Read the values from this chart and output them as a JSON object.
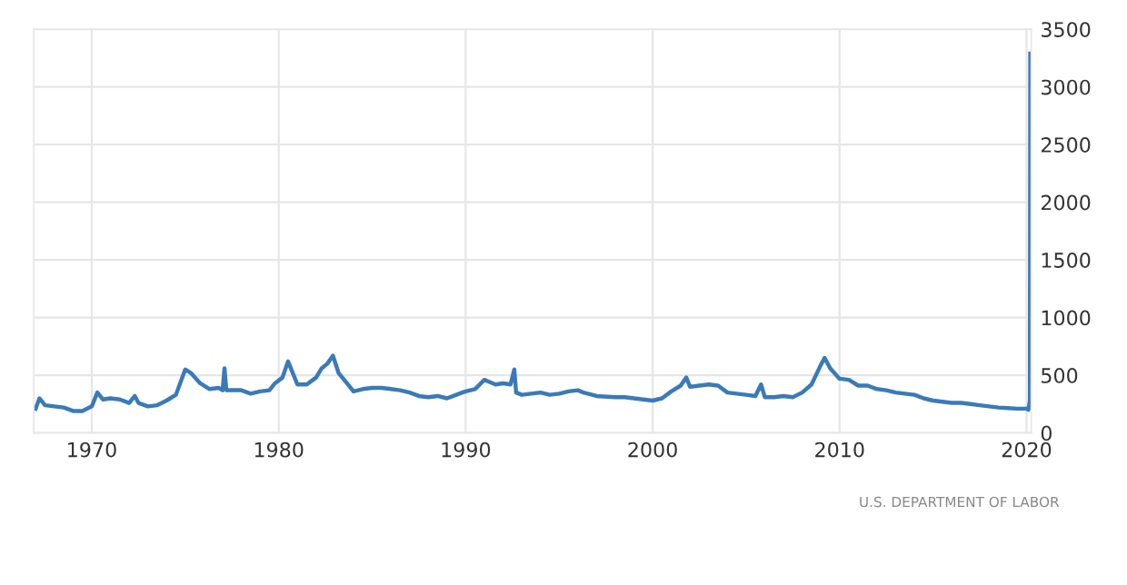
{
  "chart_data": {
    "type": "line",
    "x": [
      1967.0,
      1967.2,
      1967.5,
      1968,
      1968.5,
      1969,
      1969.5,
      1970,
      1970.3,
      1970.6,
      1971,
      1971.5,
      1972,
      1972.3,
      1972.5,
      1973,
      1973.5,
      1974,
      1974.5,
      1975.0,
      1975.3,
      1975.8,
      1976.3,
      1976.8,
      1977.0,
      1977.1,
      1977.2,
      1978,
      1978.5,
      1979,
      1979.5,
      1979.8,
      1980.2,
      1980.5,
      1980.8,
      1981,
      1981.5,
      1982,
      1982.3,
      1982.6,
      1982.9,
      1983.2,
      1983.6,
      1984,
      1984.5,
      1985,
      1985.5,
      1986,
      1986.5,
      1987,
      1987.5,
      1988,
      1988.5,
      1989,
      1989.5,
      1990,
      1990.5,
      1991.0,
      1991.3,
      1991.6,
      1992,
      1992.4,
      1992.6,
      1992.7,
      1993,
      1993.5,
      1994,
      1994.5,
      1995,
      1995.5,
      1996,
      1996.3,
      1997,
      1998,
      1998.5,
      1999,
      1999.5,
      2000,
      2000.5,
      2001,
      2001.5,
      2001.8,
      2002,
      2002.5,
      2003,
      2003.5,
      2004,
      2004.5,
      2005,
      2005.5,
      2005.8,
      2006,
      2006.5,
      2007,
      2007.5,
      2008,
      2008.5,
      2009.0,
      2009.2,
      2009.5,
      2010,
      2010.5,
      2011,
      2011.5,
      2012,
      2012.5,
      2013,
      2013.5,
      2014,
      2014.5,
      2015,
      2015.5,
      2016,
      2016.5,
      2017,
      2017.5,
      2018,
      2018.5,
      2019,
      2019.5,
      2020.0,
      2020.1,
      2020.18,
      2020.2
    ],
    "series": [
      {
        "color": "#3a7ab8",
        "values": [
          210,
          300,
          240,
          230,
          220,
          190,
          190,
          230,
          350,
          290,
          300,
          290,
          260,
          320,
          260,
          230,
          240,
          280,
          330,
          550,
          520,
          430,
          380,
          390,
          370,
          560,
          370,
          370,
          340,
          360,
          370,
          430,
          480,
          620,
          500,
          420,
          420,
          480,
          560,
          600,
          670,
          520,
          440,
          360,
          380,
          390,
          390,
          380,
          370,
          350,
          320,
          310,
          320,
          300,
          330,
          360,
          380,
          460,
          440,
          420,
          430,
          420,
          550,
          350,
          330,
          340,
          350,
          330,
          340,
          360,
          370,
          350,
          320,
          310,
          310,
          300,
          290,
          280,
          300,
          360,
          410,
          480,
          400,
          410,
          420,
          410,
          350,
          340,
          330,
          320,
          420,
          310,
          310,
          320,
          310,
          350,
          420,
          590,
          650,
          560,
          470,
          460,
          410,
          410,
          380,
          370,
          350,
          340,
          330,
          300,
          280,
          270,
          260,
          260,
          250,
          240,
          230,
          220,
          215,
          210,
          210,
          200,
          280,
          3290
        ]
      }
    ],
    "xlim": [
      1966.9,
      2020.25
    ],
    "xticks": [
      1970,
      1980,
      1990,
      2000,
      2010,
      2020
    ],
    "ylim": [
      0,
      3500
    ],
    "yticks": [
      0,
      500,
      1000,
      1500,
      2000,
      2500,
      3000,
      3500
    ],
    "grid": true,
    "legend": false,
    "annotations": [
      "U.S. DEPARTMENT OF LABOR"
    ]
  }
}
